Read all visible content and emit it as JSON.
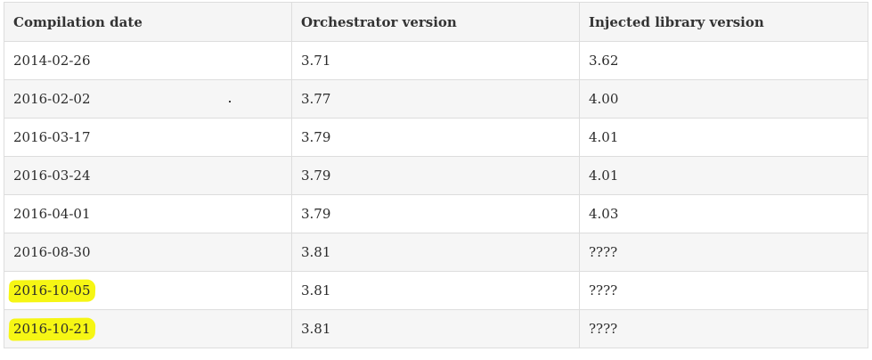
{
  "table": {
    "headers": [
      "Compilation date",
      "Orchestrator version",
      "Injected library version"
    ],
    "rows": [
      {
        "date": "2014-02-26",
        "orchestrator": "3.71",
        "library": "3.62",
        "highlighted": false
      },
      {
        "date": "2016-02-02",
        "orchestrator": "3.77",
        "library": "4.00",
        "highlighted": false
      },
      {
        "date": "2016-03-17",
        "orchestrator": "3.79",
        "library": "4.01",
        "highlighted": false
      },
      {
        "date": "2016-03-24",
        "orchestrator": "3.79",
        "library": "4.01",
        "highlighted": false
      },
      {
        "date": "2016-04-01",
        "orchestrator": "3.79",
        "library": "4.03",
        "highlighted": false
      },
      {
        "date": "2016-08-30",
        "orchestrator": "3.81",
        "library": "????",
        "highlighted": false
      },
      {
        "date": "2016-10-05",
        "orchestrator": "3.81",
        "library": "????",
        "highlighted": true
      },
      {
        "date": "2016-10-21",
        "orchestrator": "3.81",
        "library": "????",
        "highlighted": true
      }
    ]
  },
  "colors": {
    "highlight": "#f5f500",
    "header_bg": "#f5f5f5",
    "stripe_bg": "#f6f6f6",
    "border": "#dddddd"
  }
}
